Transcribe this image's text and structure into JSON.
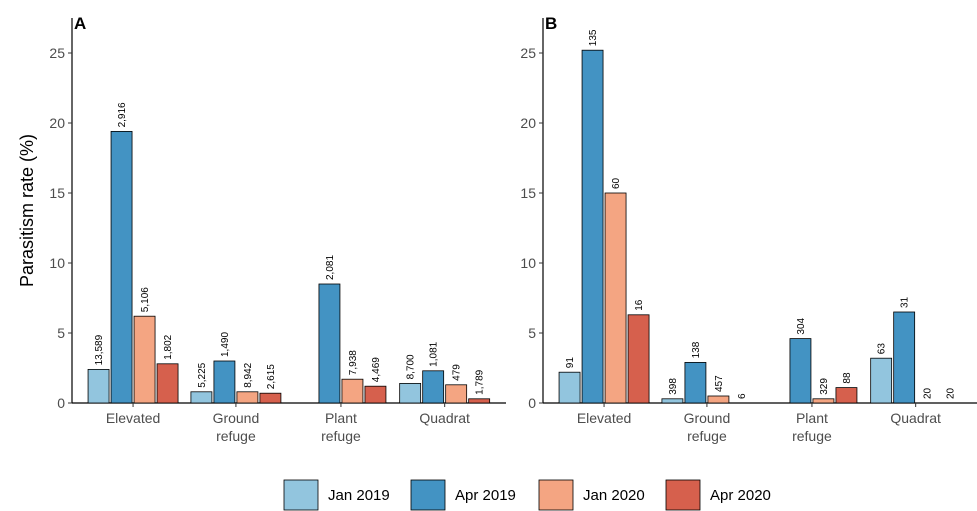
{
  "chart_data": [
    {
      "type": "bar",
      "panel": "A",
      "ylabel": "Parasitism rate (%)",
      "ylim": [
        0,
        27.5
      ],
      "yticks": [
        0,
        5,
        10,
        15,
        20,
        25
      ],
      "categories": [
        [
          "Elevated"
        ],
        [
          "Ground",
          "refuge"
        ],
        [
          "Plant",
          "refuge"
        ],
        [
          "Quadrat"
        ]
      ],
      "series": [
        {
          "name": "Jan 2019",
          "color": "#92c5de",
          "values": [
            2.4,
            0.8,
            null,
            1.4
          ],
          "labels": [
            "13,589",
            "5,225",
            null,
            "8,700"
          ]
        },
        {
          "name": "Apr 2019",
          "color": "#4393c3",
          "values": [
            19.4,
            3.0,
            8.5,
            2.3
          ],
          "labels": [
            "2,916",
            "1,490",
            "2,081",
            "1,081"
          ]
        },
        {
          "name": "Jan 2020",
          "color": "#f4a582",
          "values": [
            6.2,
            0.8,
            1.7,
            1.3
          ],
          "labels": [
            "5,106",
            "8,942",
            "7,938",
            "479"
          ]
        },
        {
          "name": "Apr 2020",
          "color": "#d6604d",
          "values": [
            2.8,
            0.7,
            1.2,
            0.3
          ],
          "labels": [
            "1,802",
            "2,615",
            "4,469",
            "1,789"
          ]
        }
      ]
    },
    {
      "type": "bar",
      "panel": "B",
      "ylabel": "",
      "ylim": [
        0,
        27.5
      ],
      "yticks": [
        0,
        5,
        10,
        15,
        20,
        25
      ],
      "categories": [
        [
          "Elevated"
        ],
        [
          "Ground",
          "refuge"
        ],
        [
          "Plant",
          "refuge"
        ],
        [
          "Quadrat"
        ]
      ],
      "series": [
        {
          "name": "Jan 2019",
          "color": "#92c5de",
          "values": [
            2.2,
            0.3,
            null,
            3.2
          ],
          "labels": [
            "91",
            "398",
            null,
            "63"
          ]
        },
        {
          "name": "Apr 2019",
          "color": "#4393c3",
          "values": [
            25.2,
            2.9,
            4.6,
            6.5
          ],
          "labels": [
            "135",
            "138",
            "304",
            "31"
          ]
        },
        {
          "name": "Jan 2020",
          "color": "#f4a582",
          "values": [
            15.0,
            0.5,
            0.3,
            0
          ],
          "labels": [
            "60",
            "457",
            "329",
            "20"
          ]
        },
        {
          "name": "Apr 2020",
          "color": "#d6604d",
          "values": [
            6.3,
            0,
            1.1,
            0
          ],
          "labels": [
            "16",
            "6",
            "88",
            "20"
          ]
        }
      ]
    }
  ],
  "legend": {
    "placement": "bottom",
    "items": [
      {
        "label": "Jan 2019",
        "color": "#92c5de"
      },
      {
        "label": "Apr 2019",
        "color": "#4393c3"
      },
      {
        "label": "Jan 2020",
        "color": "#f4a582"
      },
      {
        "label": "Apr 2020",
        "color": "#d6604d"
      }
    ]
  }
}
